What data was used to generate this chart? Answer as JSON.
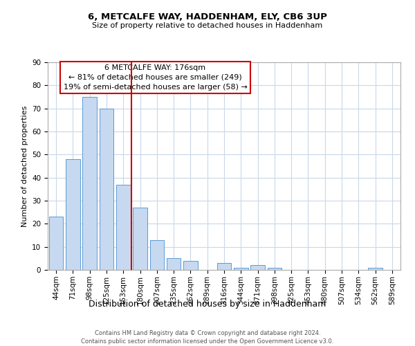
{
  "title": "6, METCALFE WAY, HADDENHAM, ELY, CB6 3UP",
  "subtitle": "Size of property relative to detached houses in Haddenham",
  "xlabel": "Distribution of detached houses by size in Haddenham",
  "ylabel": "Number of detached properties",
  "bar_labels": [
    "44sqm",
    "71sqm",
    "98sqm",
    "125sqm",
    "153sqm",
    "180sqm",
    "207sqm",
    "235sqm",
    "262sqm",
    "289sqm",
    "316sqm",
    "344sqm",
    "371sqm",
    "398sqm",
    "425sqm",
    "453sqm",
    "480sqm",
    "507sqm",
    "534sqm",
    "562sqm",
    "589sqm"
  ],
  "bar_values": [
    23,
    48,
    75,
    70,
    37,
    27,
    13,
    5,
    4,
    0,
    3,
    1,
    2,
    1,
    0,
    0,
    0,
    0,
    0,
    1,
    0
  ],
  "bar_color": "#c6d9f0",
  "bar_edge_color": "#5b9bd5",
  "vline_x": 4.5,
  "vline_color": "#cc0000",
  "annotation_lines": [
    "6 METCALFE WAY: 176sqm",
    "← 81% of detached houses are smaller (249)",
    "19% of semi-detached houses are larger (58) →"
  ],
  "annotation_box_edge": "#cc0000",
  "ylim": [
    0,
    90
  ],
  "yticks": [
    0,
    10,
    20,
    30,
    40,
    50,
    60,
    70,
    80,
    90
  ],
  "footer_line1": "Contains HM Land Registry data © Crown copyright and database right 2024.",
  "footer_line2": "Contains public sector information licensed under the Open Government Licence v3.0.",
  "background_color": "#ffffff",
  "grid_color": "#c8d8e8",
  "title_fontsize": 9.5,
  "subtitle_fontsize": 8,
  "ylabel_fontsize": 8,
  "xlabel_fontsize": 9,
  "tick_fontsize": 7.5,
  "annot_fontsize": 8,
  "footer_fontsize": 6
}
